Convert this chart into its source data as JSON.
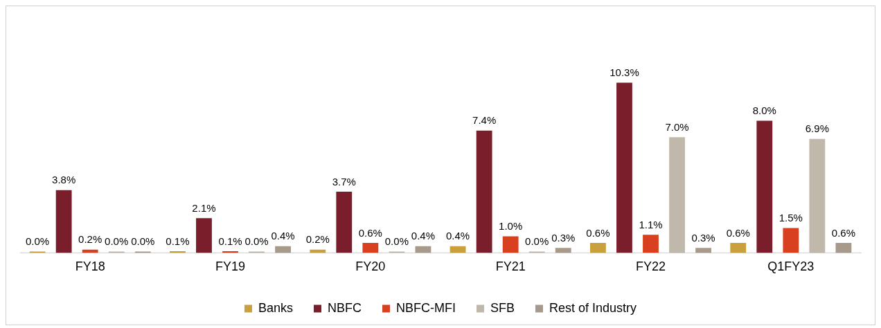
{
  "chart_data": {
    "type": "bar",
    "categories": [
      "FY18",
      "FY19",
      "FY20",
      "FY21",
      "FY22",
      "Q1FY23"
    ],
    "legend": "bottom",
    "grid": false,
    "series": [
      {
        "name": "Banks",
        "color": "#c9a03c",
        "values": [
          0.0,
          0.1,
          0.2,
          0.4,
          0.6,
          0.6
        ],
        "value_labels": [
          "0.0%",
          "0.1%",
          "0.2%",
          "0.4%",
          "0.6%",
          "0.6%"
        ]
      },
      {
        "name": "NBFC",
        "color": "#7b1e2b",
        "values": [
          3.8,
          2.1,
          3.7,
          7.4,
          10.3,
          8.0
        ],
        "value_labels": [
          "3.8%",
          "2.1%",
          "3.7%",
          "7.4%",
          "10.3%",
          "8.0%"
        ]
      },
      {
        "name": "NBFC-MFI",
        "color": "#d9401f",
        "values": [
          0.2,
          0.1,
          0.6,
          1.0,
          1.1,
          1.5
        ],
        "value_labels": [
          "0.2%",
          "0.1%",
          "0.6%",
          "1.0%",
          "1.1%",
          "1.5%"
        ]
      },
      {
        "name": "SFB",
        "color": "#c0b8aa",
        "values": [
          0.0,
          0.0,
          0.0,
          0.0,
          7.0,
          6.9
        ],
        "value_labels": [
          "0.0%",
          "0.0%",
          "0.0%",
          "0.0%",
          "7.0%",
          "6.9%"
        ]
      },
      {
        "name": "Rest of Industry",
        "color": "#a89a8a",
        "values": [
          0.0,
          0.4,
          0.4,
          0.3,
          0.3,
          0.6
        ],
        "value_labels": [
          "0.0%",
          "0.4%",
          "0.4%",
          "0.3%",
          "0.3%",
          "0.6%"
        ]
      }
    ]
  }
}
